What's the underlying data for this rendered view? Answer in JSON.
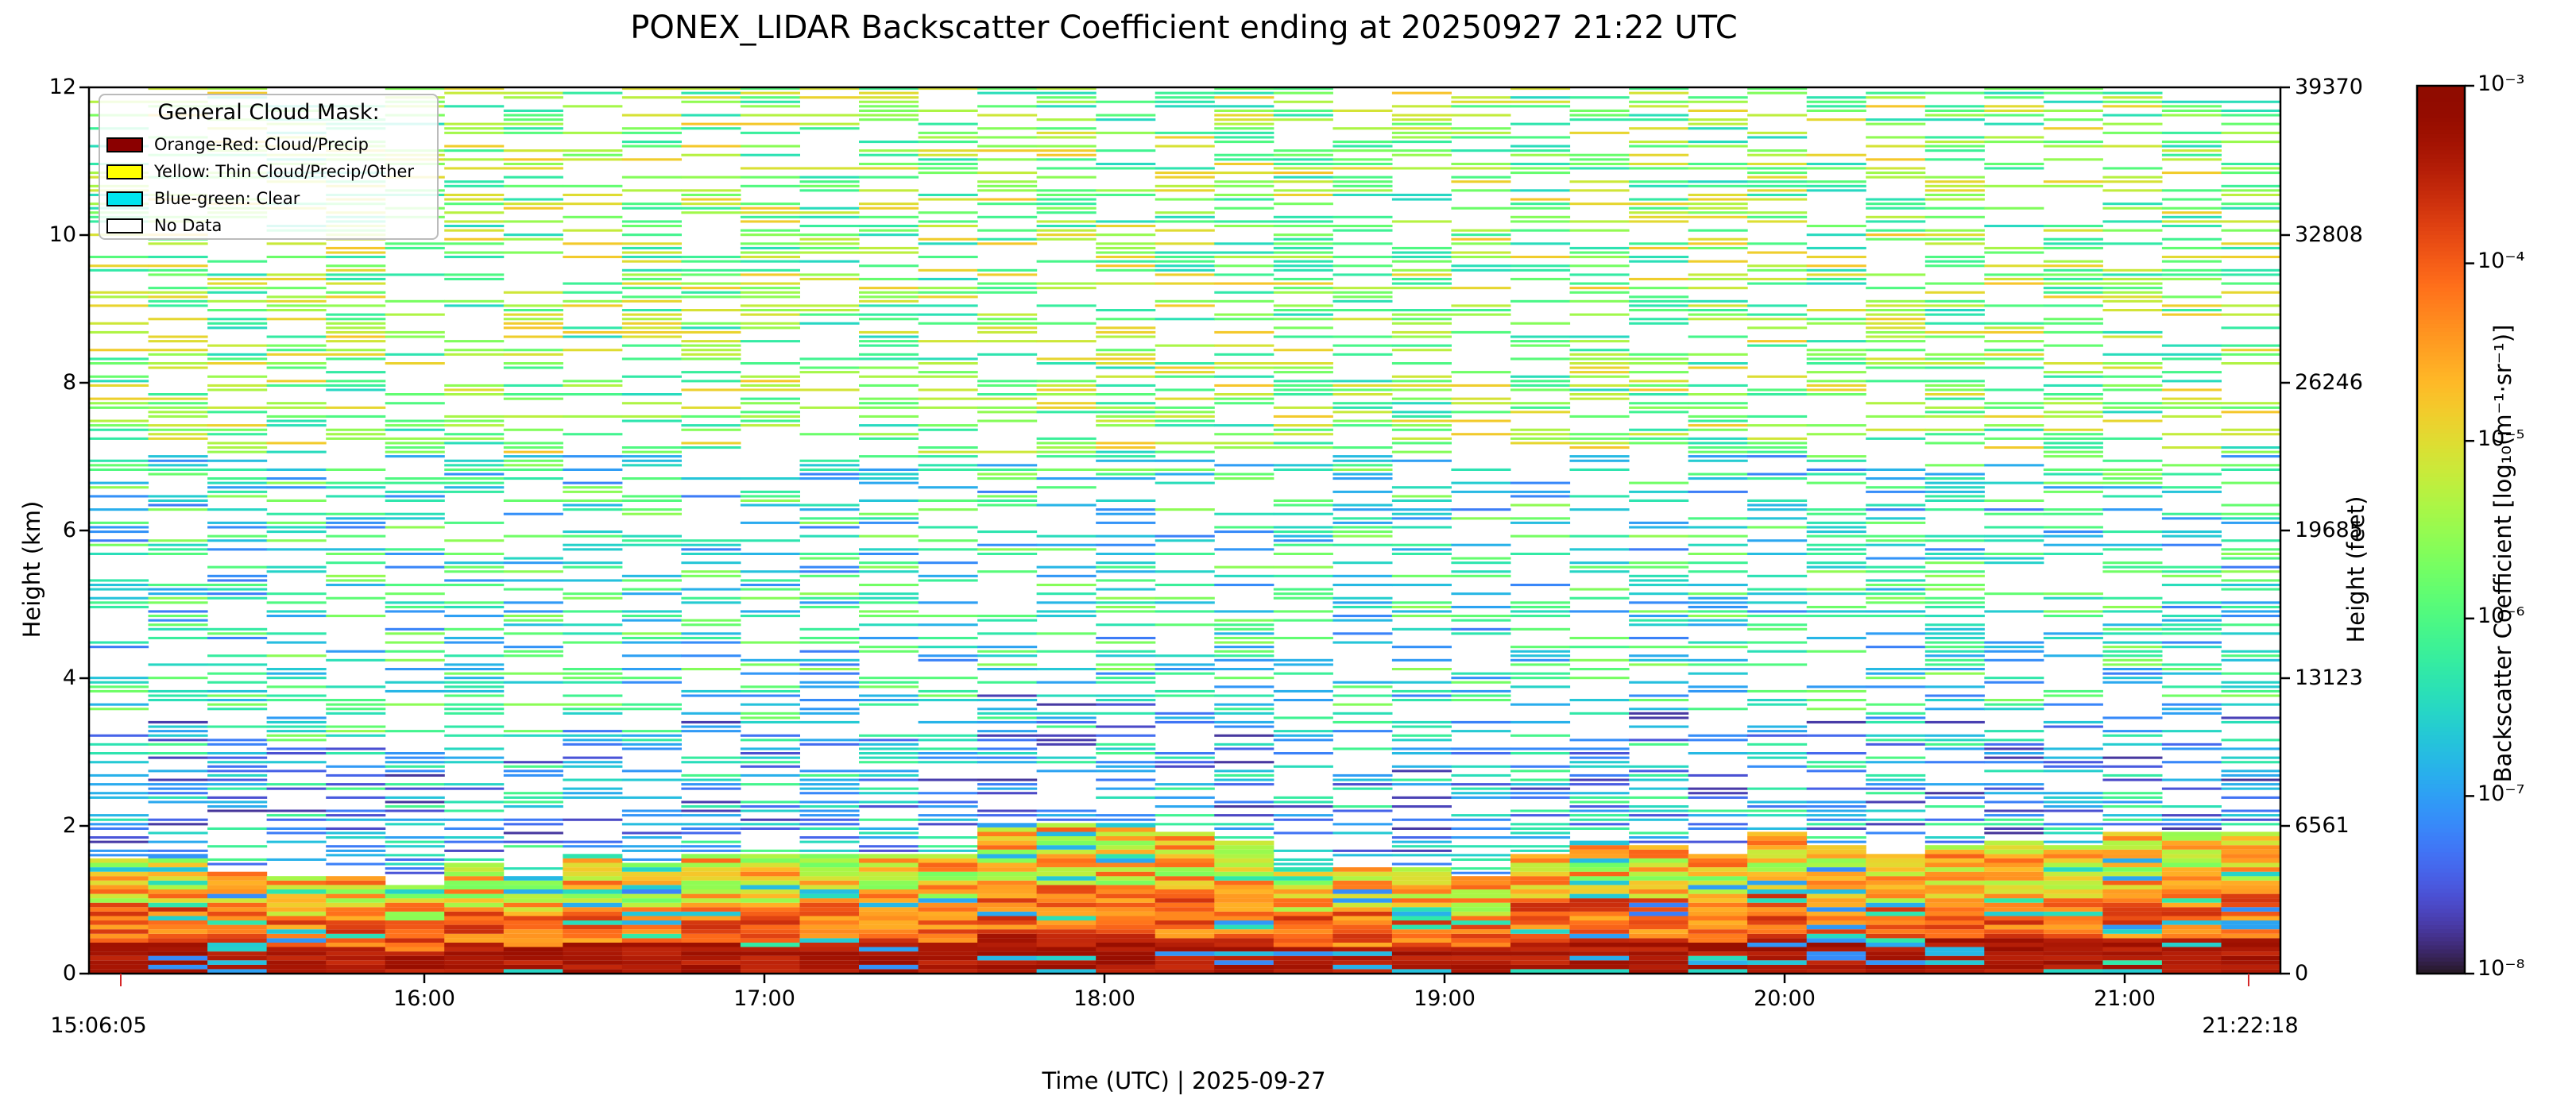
{
  "chart_data": {
    "type": "heatmap",
    "title": "PONEX_LIDAR Backscatter Coefficient ending at 20250927 21:22 UTC",
    "xlabel": "Time (UTC)  |  2025-09-27",
    "ylabel": "Height (km)",
    "ylabel_right": "Height (feet)",
    "colorbar_label": "Backscatter Coefficient [log₁₀(m⁻¹·sr⁻¹)]",
    "colorbar_range": [
      -8,
      -3
    ],
    "colorbar_ticks": [
      "10⁻³",
      "10⁻⁴",
      "10⁻⁵",
      "10⁻⁶",
      "10⁻⁷",
      "10⁻⁸"
    ],
    "colorbar_tick_values": [
      -3,
      -4,
      -5,
      -6,
      -7,
      -8
    ],
    "colormap": "turbo",
    "x_start_label": "15:06:05",
    "x_end_label": "21:22:18",
    "x_start": "15:06:05",
    "x_end": "21:22:18",
    "x_ticks": [
      "16:00",
      "17:00",
      "18:00",
      "19:00",
      "20:00",
      "21:00"
    ],
    "ylim": [
      0,
      12
    ],
    "y_ticks": [
      "0",
      "2",
      "4",
      "6",
      "8",
      "10",
      "12"
    ],
    "y_right_ticks": [
      "0",
      "6561",
      "13123",
      "19685",
      "26246",
      "32808",
      "39370"
    ],
    "y_tick_values": [
      0,
      2,
      4,
      6,
      8,
      10,
      12
    ],
    "legend": {
      "title": "General Cloud Mask:",
      "placement": "top-left",
      "entries": [
        {
          "label": "Orange-Red: Cloud/Precip",
          "color": "#8b0000"
        },
        {
          "label": "Yellow: Thin Cloud/Precip/Other",
          "color": "#ffff00"
        },
        {
          "label": "Blue-green: Clear",
          "color": "#00e5ee"
        },
        {
          "label": "No Data",
          "color": "#ffffff"
        }
      ]
    },
    "boundary_layer_top_km": [
      1.55,
      1.6,
      1.35,
      1.3,
      1.3,
      1.2,
      1.5,
      1.3,
      1.6,
      1.5,
      1.6,
      1.6,
      1.6,
      1.6,
      1.6,
      2.0,
      2.0,
      2.0,
      1.9,
      1.8,
      1.4,
      1.4,
      1.4,
      1.3,
      1.6,
      1.8,
      1.7,
      1.6,
      1.9,
      1.7,
      1.6,
      1.7,
      1.8,
      1.7,
      1.9,
      1.9,
      1.9
    ]
  }
}
